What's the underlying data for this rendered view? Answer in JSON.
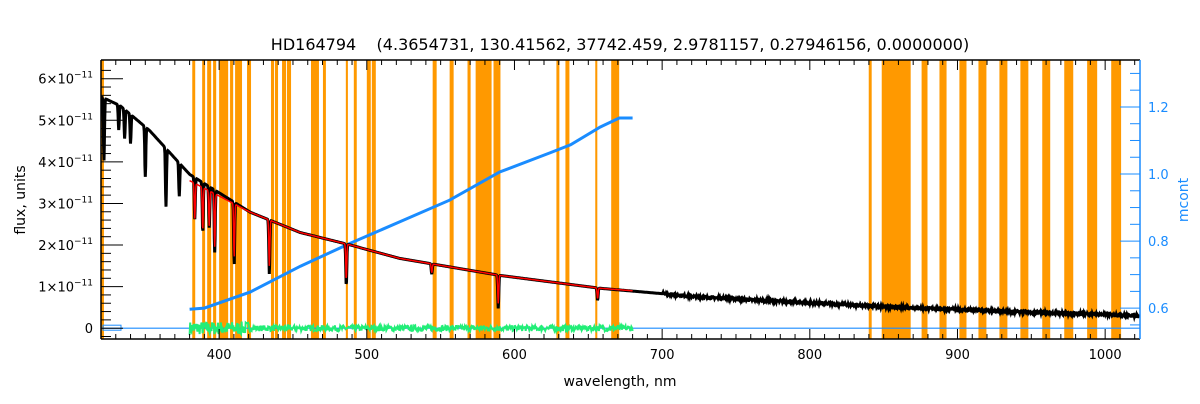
{
  "chart_data": {
    "type": "line",
    "title": "HD164794    (4.3654731, 130.41562, 37742.459, 2.9781157, 0.27946156, 0.0000000)",
    "xlabel": "wavelength, nm",
    "ylabel": "flux, units",
    "y2label": "mcont",
    "xlim": [
      320,
      1023.6
    ],
    "ylim": [
      -2.6e-12,
      6.45e-11
    ],
    "y2lim": [
      0.508,
      1.34
    ],
    "grid": false,
    "x_ticks": [
      400,
      500,
      600,
      700,
      800,
      900,
      1000
    ],
    "x_tick_labels": [
      "400",
      "500",
      "600",
      "700",
      "800",
      "900",
      "1000"
    ],
    "y_ticks": [
      0,
      1e-11,
      2e-11,
      3e-11,
      4e-11,
      5e-11,
      6e-11
    ],
    "y_tick_labels": [
      {
        "mant": "0",
        "exp": ""
      },
      {
        "mant": "1×10",
        "exp": "−11"
      },
      {
        "mant": "2×10",
        "exp": "−11"
      },
      {
        "mant": "3×10",
        "exp": "−11"
      },
      {
        "mant": "4×10",
        "exp": "−11"
      },
      {
        "mant": "5×10",
        "exp": "−11"
      },
      {
        "mant": "6×10",
        "exp": "−11"
      }
    ],
    "y2_ticks": [
      0.6,
      0.8,
      1.0,
      1.2
    ],
    "y2_tick_labels": [
      "0.6",
      "0.8",
      "1.0",
      "1.2"
    ],
    "colors": {
      "flux": "#000000",
      "model": "#ff0000",
      "mcont": "#1a8cff",
      "residual": "#22ee77",
      "masks": "#ff9900",
      "zero_line": "#1a8cff"
    },
    "series": [
      {
        "name": "flux",
        "axis": "left",
        "unit_scale": 1e-11,
        "x": [
          321,
          333,
          353,
          380,
          421,
          455,
          489,
          522,
          590,
          658,
          726,
          793,
          861,
          929,
          1023
        ],
        "y": [
          5.55,
          5.35,
          4.75,
          3.7,
          2.79,
          2.3,
          2.0,
          1.68,
          1.27,
          0.96,
          0.75,
          0.62,
          0.5,
          0.41,
          0.3
        ],
        "absorption_lines": [
          {
            "nm": 322,
            "depth": 1.5
          },
          {
            "nm": 332,
            "depth": 0.6
          },
          {
            "nm": 336,
            "depth": 0.7
          },
          {
            "nm": 340,
            "depth": 0.7
          },
          {
            "nm": 350,
            "depth": 1.2
          },
          {
            "nm": 364,
            "depth": 1.4
          },
          {
            "nm": 373,
            "depth": 0.8
          },
          {
            "nm": 383.5,
            "depth": 1.0
          },
          {
            "nm": 388.9,
            "depth": 1.2
          },
          {
            "nm": 393.3,
            "depth": 1.0
          },
          {
            "nm": 397,
            "depth": 1.5
          },
          {
            "nm": 410.2,
            "depth": 1.5
          },
          {
            "nm": 434,
            "depth": 1.3
          },
          {
            "nm": 486.1,
            "depth": 1.0
          },
          {
            "nm": 544,
            "depth": 0.25
          },
          {
            "nm": 589,
            "depth": 0.8
          },
          {
            "nm": 656.3,
            "depth": 0.3
          }
        ]
      },
      {
        "name": "model",
        "axis": "left",
        "unit_scale": 1e-11,
        "x": [
          380,
          421,
          455,
          489,
          522,
          590,
          658,
          680
        ],
        "y": [
          3.55,
          2.79,
          2.3,
          2.0,
          1.68,
          1.27,
          0.96,
          0.9
        ]
      },
      {
        "name": "mcont",
        "axis": "right",
        "x": [
          380,
          390,
          421,
          455,
          489,
          522,
          556,
          590,
          624,
          638,
          658,
          671,
          680
        ],
        "y": [
          0.597,
          0.6,
          0.648,
          0.725,
          0.794,
          0.857,
          0.922,
          1.006,
          1.063,
          1.087,
          1.14,
          1.167,
          1.167
        ]
      },
      {
        "name": "residual",
        "axis": "left",
        "x_range": [
          380,
          680
        ],
        "center": 0,
        "amplitude": 0.2
      }
    ],
    "mask_bands_nm": [
      [
        320,
        322
      ],
      [
        381.8,
        383.8
      ],
      [
        388.5,
        390.5
      ],
      [
        391.9,
        394.6
      ],
      [
        395.9,
        398
      ],
      [
        400,
        406.1
      ],
      [
        407.4,
        409.5
      ],
      [
        410.8,
        415.5
      ],
      [
        418.9,
        421.6
      ],
      [
        435.1,
        437.2
      ],
      [
        437.8,
        439.9
      ],
      [
        442.6,
        445.3
      ],
      [
        445.9,
        448.7
      ],
      [
        462.2,
        467.6
      ],
      [
        470.3,
        472.3
      ],
      [
        485.8,
        487.2
      ],
      [
        491.2,
        493.2
      ],
      [
        500,
        502.7
      ],
      [
        503.4,
        506.1
      ],
      [
        544.6,
        547.3
      ],
      [
        556.1,
        558.8
      ],
      [
        568.2,
        570.3
      ],
      [
        573.7,
        584.5
      ],
      [
        585.8,
        590.5
      ],
      [
        628.4,
        630.4
      ],
      [
        634.5,
        637.2
      ],
      [
        654.7,
        656.1
      ],
      [
        665.5,
        670.9
      ],
      [
        839.9,
        841.9
      ],
      [
        848.7,
        868.3
      ],
      [
        875.7,
        879.7
      ],
      [
        887.8,
        892.6
      ],
      [
        901.3,
        906.1
      ],
      [
        914.2,
        919.6
      ],
      [
        928.4,
        933.8
      ],
      [
        942.6,
        948
      ],
      [
        957.4,
        962.8
      ],
      [
        972.3,
        978.4
      ],
      [
        987.8,
        994.6
      ],
      [
        1004.1,
        1010.8
      ]
    ]
  }
}
